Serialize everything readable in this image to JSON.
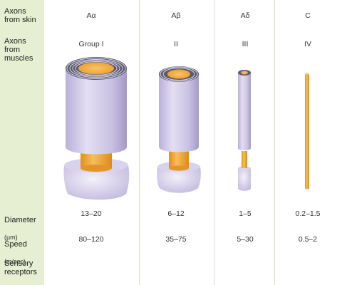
{
  "rows": {
    "skin": "Axons\nfrom skin",
    "muscles": "Axons\nfrom\nmuscles",
    "diameter": "Diameter",
    "diameter_unit": "(µm)",
    "speed": "Speed",
    "speed_unit": "(m/sec)",
    "sensory": "Sensory\nreceptors"
  },
  "columns": [
    {
      "skin": "Aα",
      "muscle": "Group I",
      "diameter": "13–20",
      "speed": "80–120"
    },
    {
      "skin": "Aβ",
      "muscle": "II",
      "diameter": "6–12",
      "speed": "35–75"
    },
    {
      "skin": "Aδ",
      "muscle": "III",
      "diameter": "1–5",
      "speed": "5–30"
    },
    {
      "skin": "C",
      "muscle": "IV",
      "diameter": "0.2–1.5",
      "speed": "0.5–2"
    }
  ],
  "colors": {
    "label_bg": "#e6efd2",
    "myelin": "#cbc4e3",
    "myelin_dark": "#a8a0c9",
    "axon": "#f2a93b",
    "axon_dark": "#d98a1e"
  }
}
